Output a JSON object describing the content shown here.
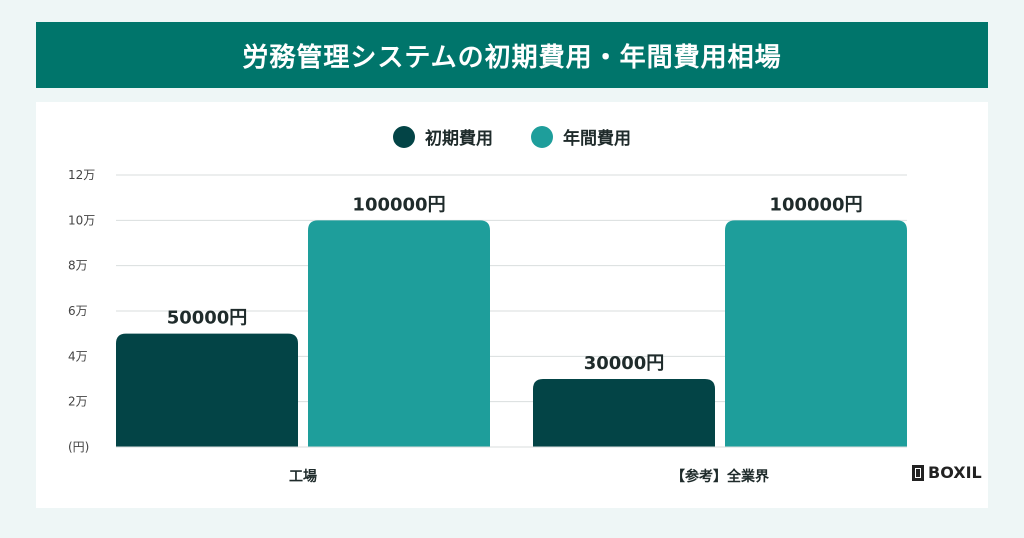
{
  "title": "労務管理システムの初期費用・年間費用相場",
  "brand": "BOXIL",
  "colors": {
    "title_bg": "#00756b",
    "initial": "#034446",
    "annual": "#1e9e9b",
    "grid": "#d9dede",
    "tick_text": "#444444"
  },
  "chart_data": {
    "type": "bar",
    "categories": [
      "工場",
      "【参考】全業界"
    ],
    "series": [
      {
        "name": "初期費用",
        "values": [
          50000,
          30000
        ],
        "labels": [
          "50000円",
          "30000円"
        ]
      },
      {
        "name": "年間費用",
        "values": [
          100000,
          100000
        ],
        "labels": [
          "100000円",
          "100000円"
        ]
      }
    ],
    "y_ticks": [
      {
        "value": 0,
        "label": "(円)"
      },
      {
        "value": 20000,
        "label": "2万"
      },
      {
        "value": 40000,
        "label": "4万"
      },
      {
        "value": 60000,
        "label": "6万"
      },
      {
        "value": 80000,
        "label": "8万"
      },
      {
        "value": 100000,
        "label": "10万"
      },
      {
        "value": 120000,
        "label": "12万"
      }
    ],
    "ylim": [
      0,
      120000
    ],
    "grid": true,
    "legend_position": "top-center"
  }
}
